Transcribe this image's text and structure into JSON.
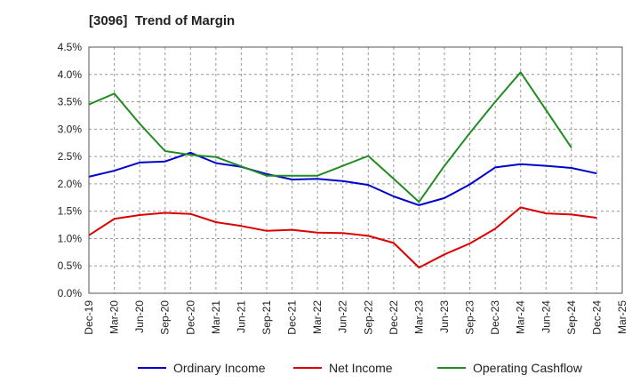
{
  "chart_data": {
    "type": "line",
    "title": "[3096]  Trend of Margin",
    "categories": [
      "Dec-19",
      "Mar-20",
      "Jun-20",
      "Sep-20",
      "Dec-20",
      "Mar-21",
      "Jun-21",
      "Sep-21",
      "Dec-21",
      "Mar-22",
      "Jun-22",
      "Sep-22",
      "Dec-22",
      "Mar-23",
      "Jun-23",
      "Sep-23",
      "Dec-23",
      "Mar-24",
      "Jun-24",
      "Sep-24",
      "Dec-24",
      "Mar-25"
    ],
    "ylim": [
      0,
      4.5
    ],
    "yticks": [
      "0.0%",
      "0.5%",
      "1.0%",
      "1.5%",
      "2.0%",
      "2.5%",
      "3.0%",
      "3.5%",
      "4.0%",
      "4.5%"
    ],
    "grid": true,
    "legend_position": "bottom",
    "series": [
      {
        "name": "Ordinary Income",
        "color": "#0000cc",
        "values": [
          2.13,
          2.24,
          2.39,
          2.41,
          2.57,
          2.38,
          2.31,
          2.18,
          2.08,
          2.09,
          2.05,
          1.98,
          1.77,
          1.61,
          1.74,
          1.99,
          2.3,
          2.36,
          2.33,
          2.29,
          2.19,
          null
        ]
      },
      {
        "name": "Net Income",
        "color": "#dd0000",
        "values": [
          1.06,
          1.36,
          1.43,
          1.47,
          1.45,
          1.3,
          1.23,
          1.14,
          1.16,
          1.11,
          1.1,
          1.05,
          0.92,
          0.47,
          0.71,
          0.91,
          1.18,
          1.57,
          1.46,
          1.44,
          1.38,
          null
        ]
      },
      {
        "name": "Operating Cashflow",
        "color": "#228b22",
        "values": [
          3.45,
          3.65,
          3.1,
          2.6,
          2.53,
          2.49,
          2.32,
          2.15,
          2.15,
          2.15,
          2.33,
          2.51,
          2.09,
          1.67,
          2.33,
          2.93,
          3.5,
          4.04,
          3.35,
          2.66,
          null,
          null
        ]
      }
    ]
  }
}
